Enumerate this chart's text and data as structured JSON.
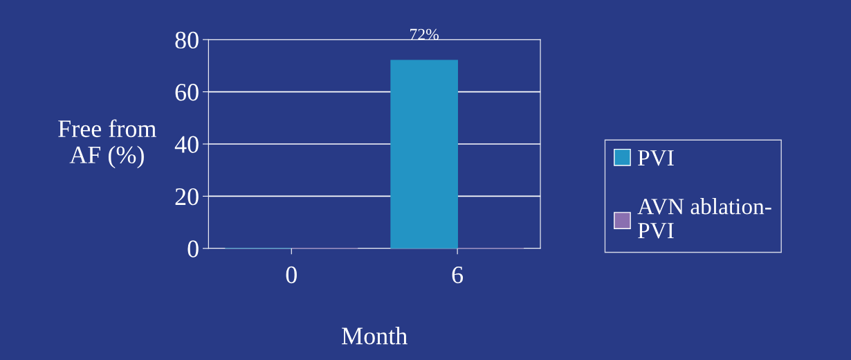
{
  "chart_data": {
    "type": "bar",
    "xlabel": "Month",
    "ylabel": "Free from\nAF (%)",
    "categories": [
      "0",
      "6"
    ],
    "series": [
      {
        "name": "PVI",
        "color": "#2394c4",
        "values": [
          0,
          72
        ],
        "value_labels": [
          null,
          "72%"
        ]
      },
      {
        "name": "AVN ablation-\nPVI",
        "color": "#8a6fb0",
        "values": [
          0,
          0
        ]
      }
    ],
    "ylim": [
      0,
      80
    ],
    "yticks": [
      0,
      20,
      40,
      60,
      80
    ],
    "grid": "y",
    "legend": "right"
  }
}
